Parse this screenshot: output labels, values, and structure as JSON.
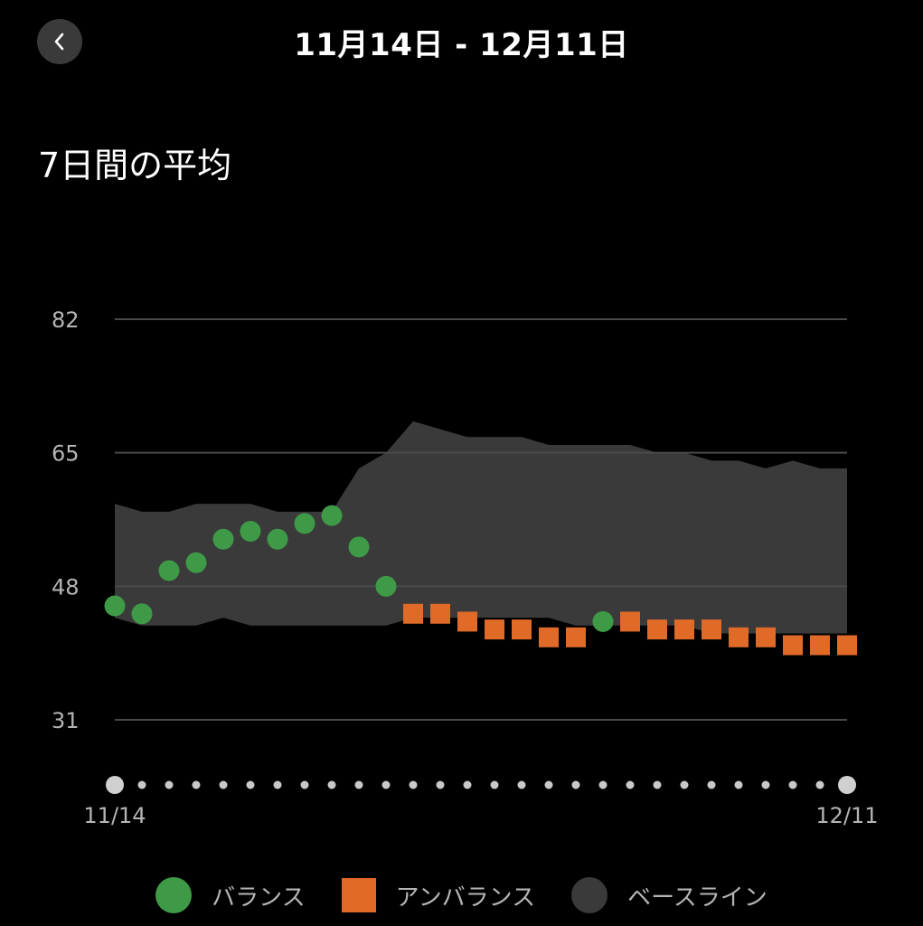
{
  "header": {
    "title": "11月14日 - 12月11日"
  },
  "section": {
    "title": "7日間の平均"
  },
  "colors": {
    "balance": "#3e9a47",
    "unbalance": "#e06a28",
    "baseline": "#3a3a3a",
    "grid": "#4a4a4a",
    "axis_text": "#b5b5b5"
  },
  "legend": [
    {
      "label": "バランス",
      "shape": "circle",
      "color": "#3e9a47"
    },
    {
      "label": "アンバランス",
      "shape": "square",
      "color": "#e06a28"
    },
    {
      "label": "ベースライン",
      "shape": "circle",
      "color": "#3a3a3a"
    }
  ],
  "chart_data": {
    "type": "scatter",
    "title": "7日間の平均",
    "xlabel": "",
    "ylabel": "",
    "x_start_label": "11/14",
    "x_end_label": "12/11",
    "yticks": [
      82,
      65,
      48,
      31
    ],
    "ylim": [
      31,
      82
    ],
    "grid": true,
    "legend_position": "bottom",
    "dates": [
      "11/14",
      "11/15",
      "11/16",
      "11/17",
      "11/18",
      "11/19",
      "11/20",
      "11/21",
      "11/22",
      "11/23",
      "11/24",
      "11/25",
      "11/26",
      "11/27",
      "11/28",
      "11/29",
      "11/30",
      "12/1",
      "12/2",
      "12/3",
      "12/4",
      "12/5",
      "12/6",
      "12/7",
      "12/8",
      "12/9",
      "12/10",
      "12/11"
    ],
    "values": [
      45.5,
      44.5,
      50,
      51,
      54,
      55,
      54,
      56,
      57,
      53,
      48,
      44.5,
      44.5,
      43.5,
      42.5,
      42.5,
      41.5,
      41.5,
      43.5,
      43.5,
      42.5,
      42.5,
      42.5,
      41.5,
      41.5,
      40.5,
      40.5,
      40.5
    ],
    "status": [
      "balance",
      "balance",
      "balance",
      "balance",
      "balance",
      "balance",
      "balance",
      "balance",
      "balance",
      "balance",
      "balance",
      "unbalance",
      "unbalance",
      "unbalance",
      "unbalance",
      "unbalance",
      "unbalance",
      "unbalance",
      "balance",
      "unbalance",
      "unbalance",
      "unbalance",
      "unbalance",
      "unbalance",
      "unbalance",
      "unbalance",
      "unbalance",
      "unbalance"
    ],
    "baseline_upper": [
      58.5,
      57.5,
      57.5,
      58.5,
      58.5,
      58.5,
      57.5,
      57.5,
      57.5,
      63,
      65,
      69,
      68,
      67,
      67,
      67,
      66,
      66,
      66,
      66,
      65,
      65,
      64,
      64,
      63,
      64,
      63,
      63
    ],
    "baseline_lower": [
      44,
      43,
      43,
      43,
      44,
      43,
      43,
      43,
      43,
      43,
      43,
      44,
      44,
      44,
      44,
      44,
      44,
      43,
      43,
      43,
      43,
      43,
      42,
      42,
      42,
      42,
      42,
      42
    ]
  }
}
